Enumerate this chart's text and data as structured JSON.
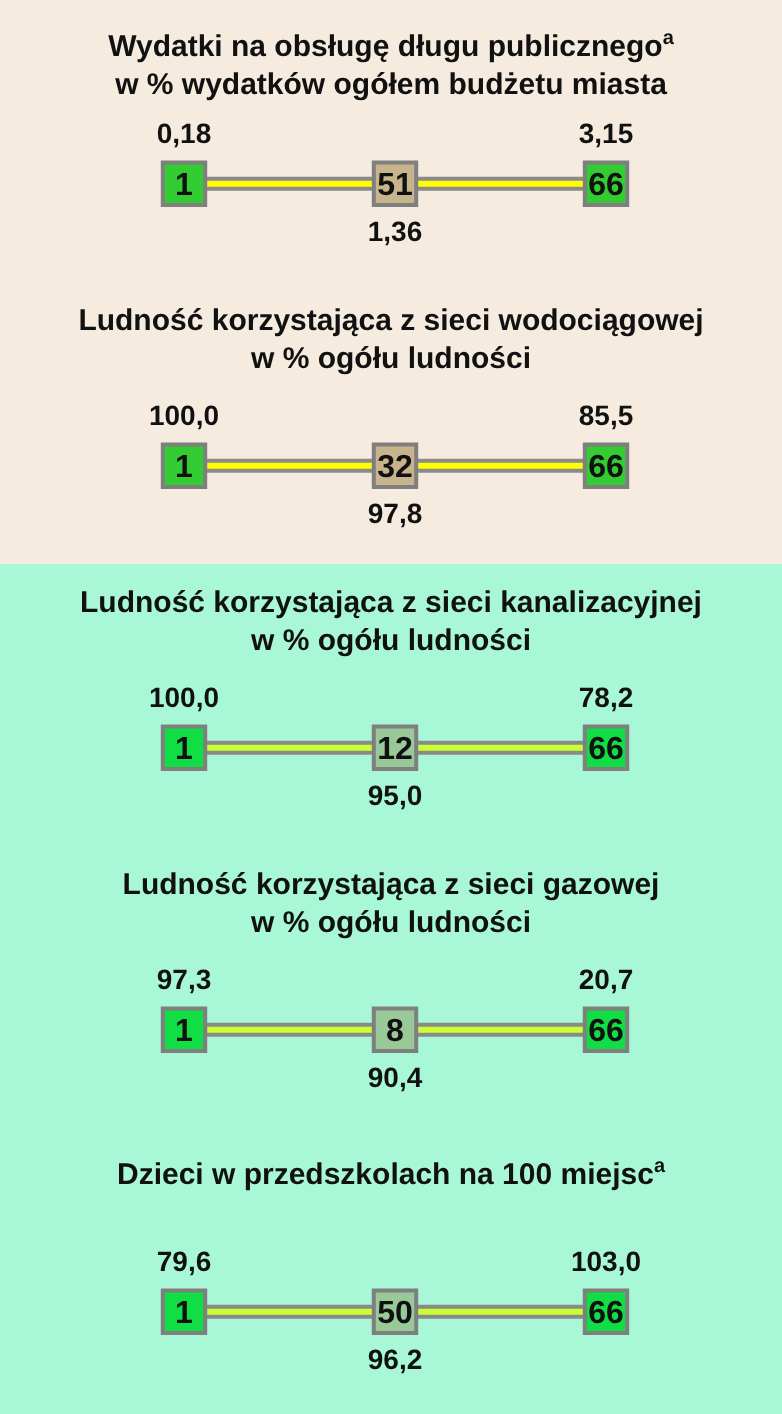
{
  "chart_data": [
    {
      "type": "other",
      "title": "Wydatki na obsługę długu publicznego$^{a}$\nw % wydatków ogółem budżetu miasta",
      "categories": [
        "1",
        "51",
        "66"
      ],
      "values": [
        0.18,
        1.36,
        3.15
      ],
      "value_labels": [
        "0,18",
        "1,36",
        "3,15"
      ],
      "colors": [
        "#33cc33",
        "#c8b48c",
        "#33cc33"
      ]
    },
    {
      "type": "other",
      "title": "Ludność korzystająca z sieci wodociągowej\nw % ogółu ludności",
      "categories": [
        "1",
        "32",
        "66"
      ],
      "values": [
        100.0,
        97.8,
        85.5
      ],
      "value_labels": [
        "100,0",
        "97,8",
        "85,5"
      ],
      "colors": [
        "#33cc33",
        "#c8b48c",
        "#33cc33"
      ]
    },
    {
      "type": "other",
      "title": "Ludność korzystająca z sieci kanalizacyjnej\nw % ogółu ludności",
      "categories": [
        "1",
        "12",
        "66"
      ],
      "values": [
        100.0,
        95.0,
        78.2
      ],
      "value_labels": [
        "100,0",
        "95,0",
        "78,2"
      ],
      "colors": [
        "#11dd44",
        "#99c899",
        "#11dd44"
      ]
    },
    {
      "type": "other",
      "title": "Ludność korzystająca z sieci gazowej\nw % ogółu ludności",
      "categories": [
        "1",
        "8",
        "66"
      ],
      "values": [
        97.3,
        90.4,
        20.7
      ],
      "value_labels": [
        "97,3",
        "90,4",
        "20,7"
      ],
      "colors": [
        "#11dd44",
        "#99c899",
        "#11dd44"
      ]
    },
    {
      "type": "other",
      "title": "Dzieci w przedszkolach na 100 miejsc$^{a}$",
      "categories": [
        "1",
        "50",
        "66"
      ],
      "values": [
        79.6,
        96.2,
        103.0
      ],
      "value_labels": [
        "79,6",
        "96,2",
        "103,0"
      ],
      "colors": [
        "#11dd44",
        "#99c899",
        "#11dd44"
      ]
    }
  ]
}
